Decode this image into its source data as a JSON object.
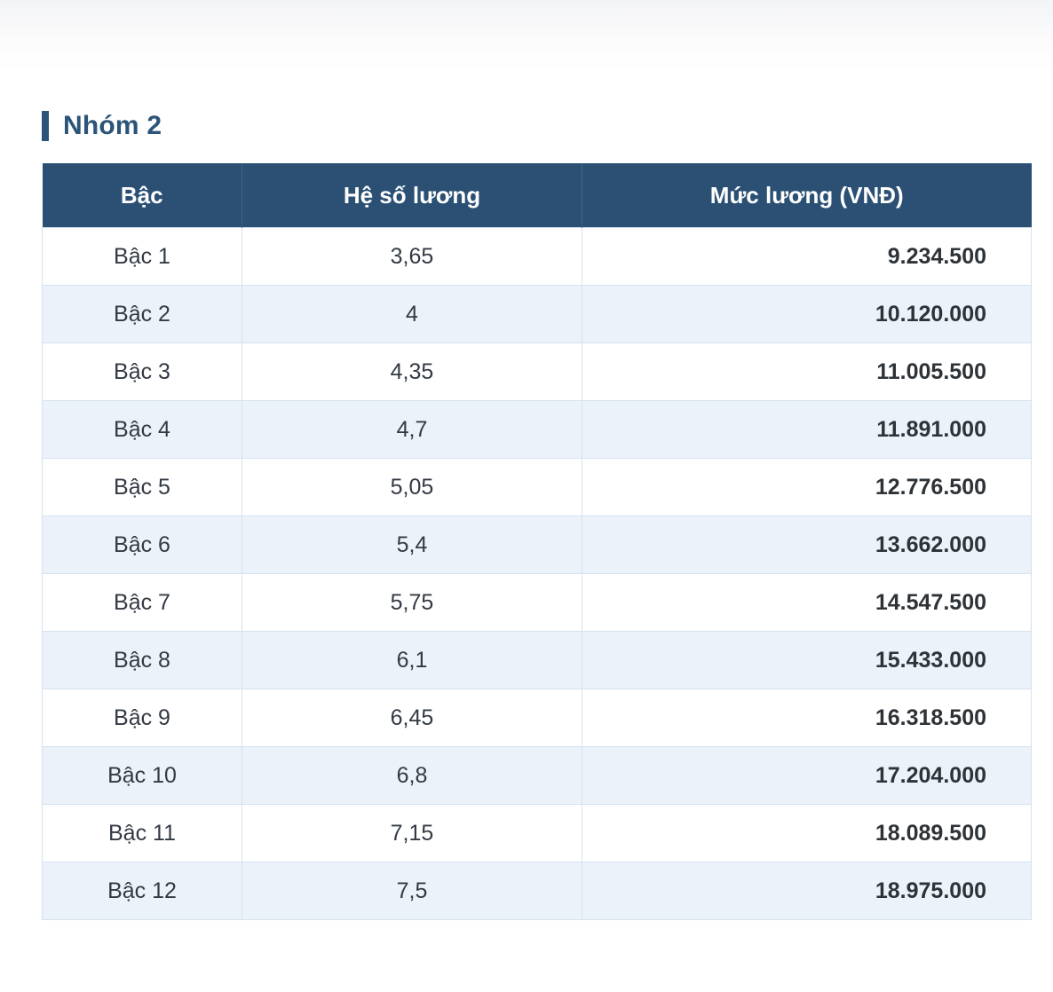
{
  "section": {
    "title": "Nhóm 2"
  },
  "table": {
    "headers": [
      "Bậc",
      "Hệ số lương",
      "Mức lương (VNĐ)"
    ],
    "rows": [
      [
        "Bậc 1",
        "3,65",
        "9.234.500"
      ],
      [
        "Bậc 2",
        "4",
        "10.120.000"
      ],
      [
        "Bậc 3",
        "4,35",
        "11.005.500"
      ],
      [
        "Bậc 4",
        "4,7",
        "11.891.000"
      ],
      [
        "Bậc 5",
        "5,05",
        "12.776.500"
      ],
      [
        "Bậc 6",
        "5,4",
        "13.662.000"
      ],
      [
        "Bậc 7",
        "5,75",
        "14.547.500"
      ],
      [
        "Bậc 8",
        "6,1",
        "15.433.000"
      ],
      [
        "Bậc 9",
        "6,45",
        "16.318.500"
      ],
      [
        "Bậc 10",
        "6,8",
        "17.204.000"
      ],
      [
        "Bậc 11",
        "7,15",
        "18.089.500"
      ],
      [
        "Bậc 12",
        "7,5",
        "18.975.000"
      ]
    ]
  },
  "colors": {
    "accent": "#2b5478",
    "header_bg": "#2b5074",
    "stripe_bg": "#ebf2fa"
  }
}
